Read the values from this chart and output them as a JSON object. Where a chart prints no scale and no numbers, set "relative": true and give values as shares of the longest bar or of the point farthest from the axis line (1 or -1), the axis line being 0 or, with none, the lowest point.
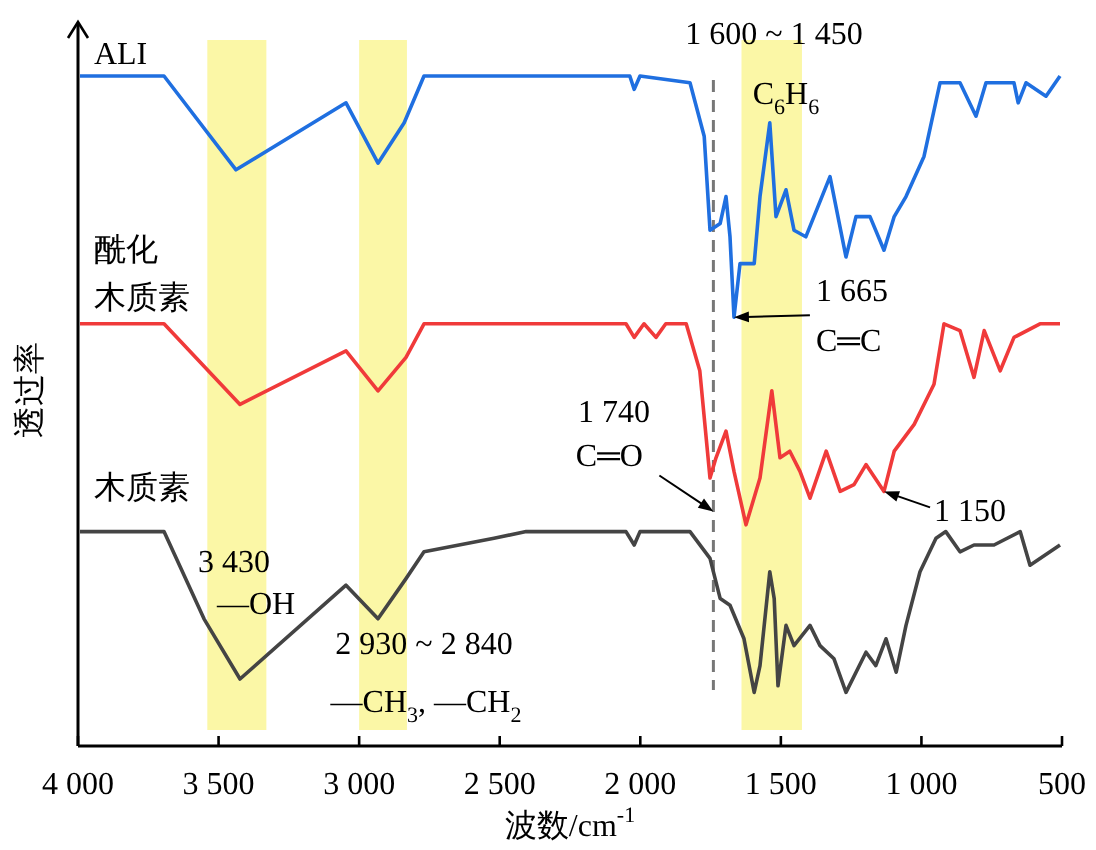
{
  "chart_data": {
    "type": "line",
    "relative": true,
    "xlabel": "波数/cm$^{-1}$",
    "ylabel": "透过率",
    "xlim": [
      4000,
      500
    ],
    "xticks": [
      {
        "value": 4000,
        "label": "4 000"
      },
      {
        "value": 3500,
        "label": "3 500"
      },
      {
        "value": 3000,
        "label": "3 000"
      },
      {
        "value": 2500,
        "label": "2 500"
      },
      {
        "value": 2000,
        "label": "2 000"
      },
      {
        "value": 1500,
        "label": "1 500"
      },
      {
        "value": 1000,
        "label": "1 000"
      },
      500
    ],
    "series": [
      {
        "name": "ALI",
        "color": "#1f6fe0",
        "x": [
          3993,
          3694,
          3438,
          3047,
          2933,
          2840,
          2769,
          2037,
          2022,
          2001,
          1823,
          1773,
          1752,
          1716,
          1695,
          1681,
          1667,
          1645,
          1595,
          1574,
          1539,
          1517,
          1482,
          1453,
          1411,
          1325,
          1268,
          1233,
          1183,
          1133,
          1097,
          1055,
          991,
          934,
          863,
          806,
          770,
          671,
          656,
          628,
          557,
          507
        ],
        "values": [
          1.0,
          1.0,
          0.86,
          0.96,
          0.87,
          0.93,
          1.0,
          1.0,
          0.98,
          1.0,
          0.99,
          0.91,
          0.77,
          0.78,
          0.82,
          0.76,
          0.64,
          0.72,
          0.72,
          0.82,
          0.93,
          0.79,
          0.83,
          0.77,
          0.76,
          0.85,
          0.73,
          0.79,
          0.79,
          0.74,
          0.79,
          0.82,
          0.88,
          0.99,
          0.99,
          0.94,
          0.99,
          0.99,
          0.96,
          0.99,
          0.97,
          1.0
        ]
      },
      {
        "name": "酰化木质素",
        "color": "#f03a3a",
        "x": [
          3993,
          3694,
          3424,
          3047,
          2933,
          2833,
          2769,
          2051,
          2022,
          1987,
          1944,
          1909,
          1837,
          1788,
          1752,
          1731,
          1695,
          1667,
          1624,
          1574,
          1532,
          1503,
          1468,
          1432,
          1396,
          1339,
          1289,
          1240,
          1197,
          1133,
          1097,
          1026,
          955,
          920,
          863,
          813,
          777,
          720,
          671,
          578,
          507
        ],
        "values": [
          0.63,
          0.63,
          0.51,
          0.59,
          0.53,
          0.58,
          0.63,
          0.63,
          0.61,
          0.63,
          0.61,
          0.63,
          0.63,
          0.56,
          0.4,
          0.43,
          0.47,
          0.41,
          0.33,
          0.4,
          0.53,
          0.43,
          0.44,
          0.41,
          0.37,
          0.44,
          0.38,
          0.39,
          0.42,
          0.38,
          0.44,
          0.48,
          0.54,
          0.63,
          0.62,
          0.55,
          0.62,
          0.56,
          0.61,
          0.63,
          0.63
        ]
      },
      {
        "name": "木质素",
        "color": "#444444",
        "x": [
          3993,
          3694,
          3552,
          3424,
          3047,
          2933,
          2833,
          2769,
          2520,
          2406,
          2051,
          2022,
          2001,
          1823,
          1752,
          1716,
          1681,
          1631,
          1595,
          1574,
          1539,
          1524,
          1510,
          1482,
          1453,
          1396,
          1361,
          1311,
          1268,
          1197,
          1162,
          1126,
          1090,
          1055,
          1005,
          948,
          913,
          863,
          813,
          742,
          649,
          614,
          507
        ],
        "values": [
          0.32,
          0.32,
          0.19,
          0.1,
          0.24,
          0.19,
          0.25,
          0.29,
          0.31,
          0.32,
          0.32,
          0.3,
          0.32,
          0.32,
          0.28,
          0.22,
          0.21,
          0.16,
          0.08,
          0.12,
          0.26,
          0.22,
          0.09,
          0.18,
          0.15,
          0.18,
          0.15,
          0.13,
          0.08,
          0.14,
          0.12,
          0.16,
          0.11,
          0.18,
          0.26,
          0.31,
          0.32,
          0.29,
          0.3,
          0.3,
          0.32,
          0.27,
          0.3
        ]
      }
    ],
    "bands": [
      {
        "axis": "x",
        "from": 3540,
        "to": 3330,
        "color": "#fbf7a6"
      },
      {
        "axis": "x",
        "from": 3000,
        "to": 2830,
        "color": "#fbf7a6"
      },
      {
        "axis": "x",
        "from": 1640,
        "to": 1425,
        "color": "#fbf7a6"
      }
    ],
    "ref_lines": [
      {
        "axis": "x",
        "value": 1740,
        "color": "#777777",
        "line_style": "dashed"
      }
    ],
    "annotations": [
      "1 600 ~ 1 450",
      "C$_{6}$H$_{6}$",
      {
        "text": "1 665",
        "x": 1667,
        "y": 0.64
      },
      {
        "text": "C═C",
        "x": 1667,
        "y": 0.64
      },
      "1 740",
      {
        "text": "C═O",
        "x": 1740,
        "y": 0.35
      },
      {
        "text": "1 150",
        "x": 1133,
        "y": 0.38
      },
      "3 430",
      "—OH",
      "2 930 ~ 2 840",
      "—CH$_{3}$, —CH$_{2}$"
    ]
  }
}
